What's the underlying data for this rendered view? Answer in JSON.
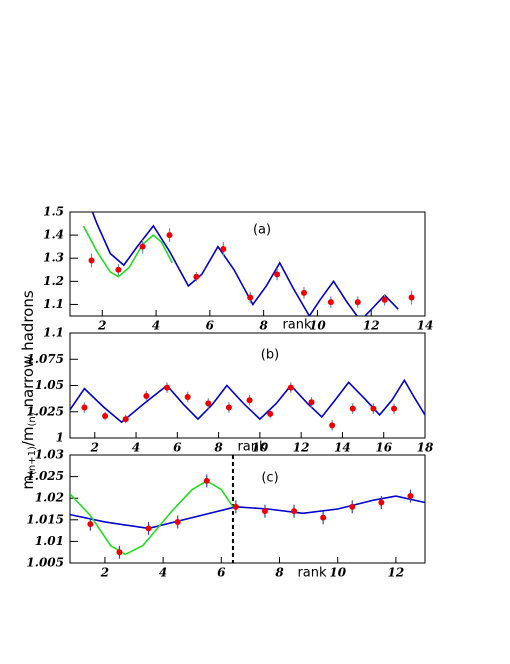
{
  "chart_data": [
    {
      "type": "line",
      "annotation": "(a)",
      "xlabel": "rank",
      "ylabel": [
        "m",
        "(n+1)",
        "/m",
        "(n)",
        " narrow hadrons"
      ],
      "xlim": [
        0.8,
        14
      ],
      "ylim": [
        1.05,
        1.5
      ],
      "xticks": [
        2,
        4,
        6,
        8,
        10,
        12,
        14
      ],
      "yticks": [
        1.1,
        1.2,
        1.3,
        1.4,
        1.5
      ],
      "series": [
        {
          "style": "line",
          "color": "#0000cc",
          "x": [
            1.3,
            1.8,
            2.3,
            2.8,
            3.3,
            3.9,
            4.5,
            5.2,
            5.7,
            6.3,
            6.9,
            7.6,
            8.1,
            8.6,
            9.1,
            9.7,
            10.1,
            10.6,
            11.1,
            11.6,
            12.1,
            12.5,
            13.0
          ],
          "values": [
            1.6,
            1.45,
            1.32,
            1.27,
            1.35,
            1.44,
            1.33,
            1.18,
            1.23,
            1.35,
            1.25,
            1.1,
            1.18,
            1.28,
            1.17,
            1.05,
            1.12,
            1.2,
            1.11,
            1.03,
            1.09,
            1.14,
            1.08
          ]
        },
        {
          "style": "line",
          "color": "#22dd22",
          "x": [
            1.3,
            1.8,
            2.3,
            2.6,
            3.0,
            3.5,
            3.9,
            4.2,
            4.6
          ],
          "values": [
            1.44,
            1.33,
            1.24,
            1.22,
            1.26,
            1.36,
            1.4,
            1.37,
            1.28
          ]
        },
        {
          "style": "points",
          "color": "#ee0000",
          "error_color": "#7788aa",
          "x": [
            1.6,
            2.6,
            3.5,
            4.5,
            5.5,
            6.5,
            7.5,
            8.5,
            9.5,
            10.5,
            11.5,
            12.5,
            13.5
          ],
          "values": [
            1.29,
            1.25,
            1.35,
            1.4,
            1.22,
            1.34,
            1.13,
            1.23,
            1.15,
            1.11,
            1.11,
            1.12,
            1.13
          ],
          "errors": [
            0.03,
            0.025,
            0.03,
            0.03,
            0.02,
            0.03,
            0.025,
            0.025,
            0.025,
            0.025,
            0.025,
            0.025,
            0.03
          ]
        }
      ]
    },
    {
      "type": "line",
      "annotation": "(b)",
      "xlabel": "rank",
      "xlim": [
        0.8,
        18
      ],
      "ylim": [
        1,
        1.1
      ],
      "xticks": [
        2,
        4,
        6,
        8,
        10,
        12,
        14,
        16,
        18
      ],
      "yticks": [
        1,
        1.025,
        1.05,
        1.075,
        1.1
      ],
      "series": [
        {
          "style": "line",
          "color": "#0000cc",
          "x": [
            0.8,
            1.5,
            2.4,
            3.3,
            4.4,
            5.5,
            6.3,
            7.0,
            7.7,
            8.4,
            9.2,
            10.0,
            10.8,
            11.5,
            12.3,
            13.0,
            13.6,
            14.3,
            15.1,
            15.8,
            16.4,
            17.0,
            17.5,
            18.0
          ],
          "values": [
            1.027,
            1.047,
            1.03,
            1.015,
            1.033,
            1.05,
            1.032,
            1.018,
            1.032,
            1.05,
            1.033,
            1.018,
            1.033,
            1.05,
            1.033,
            1.02,
            1.035,
            1.053,
            1.037,
            1.022,
            1.036,
            1.055,
            1.038,
            1.022
          ]
        },
        {
          "style": "points",
          "color": "#ee0000",
          "error_color": "#7788aa",
          "x": [
            1.5,
            2.5,
            3.5,
            4.5,
            5.5,
            6.5,
            7.5,
            8.5,
            9.5,
            10.5,
            11.5,
            12.5,
            13.5,
            14.5,
            15.5,
            16.5
          ],
          "values": [
            1.029,
            1.021,
            1.018,
            1.04,
            1.048,
            1.039,
            1.033,
            1.029,
            1.036,
            1.023,
            1.048,
            1.034,
            1.012,
            1.028,
            1.028,
            1.028
          ],
          "errors": [
            0.005,
            0.004,
            0.004,
            0.005,
            0.005,
            0.005,
            0.005,
            0.005,
            0.005,
            0.004,
            0.005,
            0.005,
            0.005,
            0.005,
            0.005,
            0.005
          ]
        }
      ]
    },
    {
      "type": "line",
      "annotation": "(c)",
      "xlabel": "rank",
      "vline": 6.4,
      "xlim": [
        0.8,
        13
      ],
      "ylim": [
        1.005,
        1.03
      ],
      "xticks": [
        2,
        4,
        6,
        8,
        10,
        12
      ],
      "yticks": [
        1.005,
        1.01,
        1.015,
        1.02,
        1.025,
        1.03
      ],
      "series": [
        {
          "style": "line",
          "color": "#0000cc",
          "x": [
            0.8,
            2.0,
            3.5,
            5.0,
            6.5,
            7.6,
            8.8,
            10.0,
            11.2,
            12.0,
            13.0
          ],
          "values": [
            1.0162,
            1.0145,
            1.013,
            1.0155,
            1.018,
            1.0175,
            1.0165,
            1.0175,
            1.0195,
            1.0205,
            1.019
          ]
        },
        {
          "style": "line",
          "color": "#22dd22",
          "x": [
            0.8,
            1.5,
            2.2,
            2.7,
            3.3,
            4.3,
            5.0,
            5.5,
            6.0,
            6.4
          ],
          "values": [
            1.021,
            1.016,
            1.009,
            1.007,
            1.009,
            1.017,
            1.022,
            1.024,
            1.022,
            1.018
          ]
        },
        {
          "style": "points",
          "color": "#ee0000",
          "error_color": "#3344bb",
          "x": [
            1.5,
            2.5,
            3.5,
            4.5,
            5.5,
            6.5,
            7.5,
            8.5,
            9.5,
            10.5,
            11.5,
            12.5
          ],
          "values": [
            1.014,
            1.0075,
            1.013,
            1.0145,
            1.024,
            1.018,
            1.017,
            1.017,
            1.0155,
            1.018,
            1.019,
            1.0205
          ],
          "errors": [
            0.0015,
            0.0015,
            0.0015,
            0.0015,
            0.0015,
            0.0015,
            0.0015,
            0.0015,
            0.0015,
            0.0015,
            0.0015,
            0.0015
          ]
        }
      ]
    }
  ]
}
